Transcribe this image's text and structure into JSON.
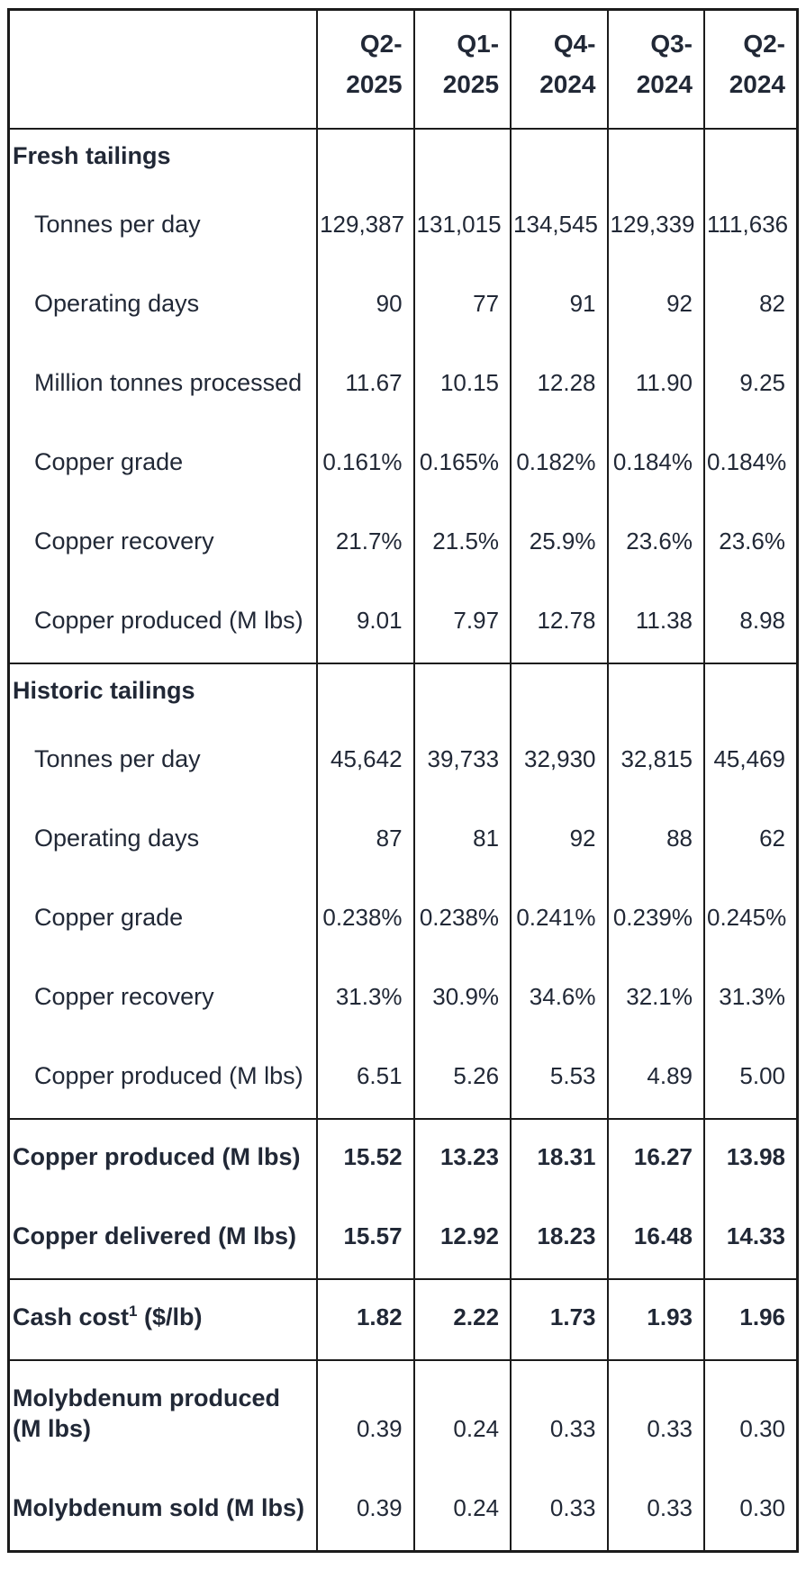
{
  "colors": {
    "text": "#212836",
    "border": "#1b1b1b",
    "background": "#ffffff"
  },
  "table": {
    "column_headers": [
      {
        "label": "Q2-2025",
        "line1": "Q2-",
        "line2": "2025"
      },
      {
        "label": "Q1-2025",
        "line1": "Q1-",
        "line2": "2025"
      },
      {
        "label": "Q4-2024",
        "line1": "Q4-",
        "line2": "2024"
      },
      {
        "label": "Q3-2024",
        "line1": "Q3-",
        "line2": "2024"
      },
      {
        "label": "Q2-2024",
        "line1": "Q2-",
        "line2": "2024"
      }
    ],
    "rows": [
      {
        "kind": "section",
        "divider": true,
        "label": "Fresh tailings",
        "values": [
          "",
          "",
          "",
          "",
          ""
        ]
      },
      {
        "kind": "data",
        "label": "Tonnes per day",
        "values": [
          "129,387",
          "131,015",
          "134,545",
          "129,339",
          "111,636"
        ]
      },
      {
        "kind": "data",
        "label": "Operating days",
        "values": [
          "90",
          "77",
          "91",
          "92",
          "82"
        ]
      },
      {
        "kind": "data",
        "label": "Million tonnes processed",
        "values": [
          "11.67",
          "10.15",
          "12.28",
          "11.90",
          "9.25"
        ]
      },
      {
        "kind": "data",
        "label": "Copper grade",
        "values": [
          "0.161%",
          "0.165%",
          "0.182%",
          "0.184%",
          "0.184%"
        ]
      },
      {
        "kind": "data",
        "label": "Copper recovery",
        "values": [
          "21.7%",
          "21.5%",
          "25.9%",
          "23.6%",
          "23.6%"
        ]
      },
      {
        "kind": "data",
        "label": "Copper produced (M lbs)",
        "values": [
          "9.01",
          "7.97",
          "12.78",
          "11.38",
          "8.98"
        ]
      },
      {
        "kind": "section",
        "divider": true,
        "label": "Historic tailings",
        "values": [
          "",
          "",
          "",
          "",
          ""
        ]
      },
      {
        "kind": "data",
        "label": "Tonnes per day",
        "values": [
          "45,642",
          "39,733",
          "32,930",
          "32,815",
          "45,469"
        ]
      },
      {
        "kind": "data",
        "label": "Operating days",
        "values": [
          "87",
          "81",
          "92",
          "88",
          "62"
        ]
      },
      {
        "kind": "data",
        "label": "Copper grade",
        "values": [
          "0.238%",
          "0.238%",
          "0.241%",
          "0.239%",
          "0.245%"
        ]
      },
      {
        "kind": "data",
        "label": "Copper recovery",
        "values": [
          "31.3%",
          "30.9%",
          "34.6%",
          "32.1%",
          "31.3%"
        ]
      },
      {
        "kind": "data",
        "label": "Copper produced (M lbs)",
        "values": [
          "6.51",
          "5.26",
          "5.53",
          "4.89",
          "5.00"
        ]
      },
      {
        "kind": "total",
        "divider": true,
        "label": "Copper produced (M lbs)",
        "values": [
          "15.52",
          "13.23",
          "18.31",
          "16.27",
          "13.98"
        ]
      },
      {
        "kind": "total",
        "label": "Copper delivered (M lbs)",
        "values": [
          "15.57",
          "12.92",
          "18.23",
          "16.48",
          "14.33"
        ]
      },
      {
        "kind": "total",
        "divider": true,
        "label": "Cash cost",
        "label_sup": "1",
        "label_suffix": " ($/lb)",
        "values": [
          "1.82",
          "2.22",
          "1.73",
          "1.93",
          "1.96"
        ]
      },
      {
        "kind": "boldlabel",
        "divider": true,
        "label": "Molybdenum produced (M lbs)",
        "values": [
          "0.39",
          "0.24",
          "0.33",
          "0.33",
          "0.30"
        ]
      },
      {
        "kind": "boldlabel",
        "label": "Molybdenum sold (M lbs)",
        "values": [
          "0.39",
          "0.24",
          "0.33",
          "0.33",
          "0.30"
        ]
      }
    ]
  }
}
